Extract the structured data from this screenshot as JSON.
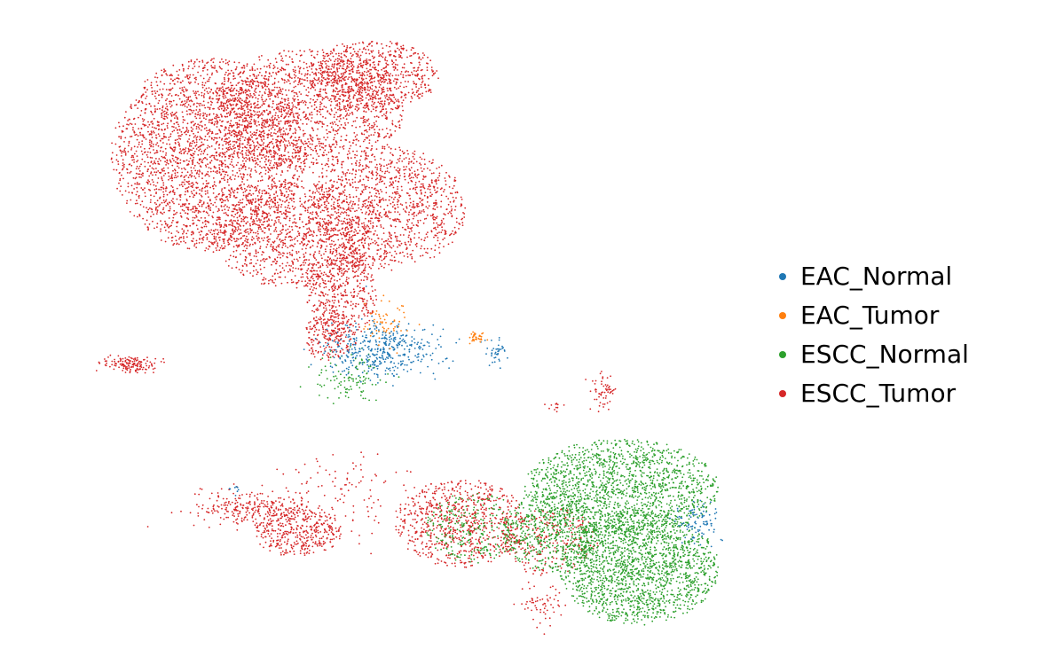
{
  "chart_data": {
    "type": "scatter",
    "title": "",
    "xlabel": "",
    "ylabel": "",
    "axes_visible": false,
    "grid": false,
    "legend_placement": "right",
    "series": [
      {
        "name": "EAC_Normal",
        "color": "#1f77b4"
      },
      {
        "name": "EAC_Tumor",
        "color": "#ff7f0e"
      },
      {
        "name": "ESCC_Normal",
        "color": "#2ca02c"
      },
      {
        "name": "ESCC_Tumor",
        "color": "#d62728"
      }
    ]
  }
}
